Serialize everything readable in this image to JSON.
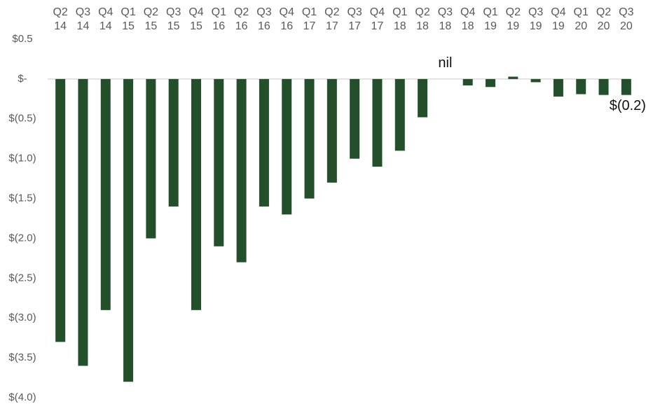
{
  "chart_data": {
    "type": "bar",
    "categories": [
      "Q2 14",
      "Q3 14",
      "Q4 14",
      "Q1 15",
      "Q2 15",
      "Q3 15",
      "Q4 15",
      "Q1 16",
      "Q2 16",
      "Q3 16",
      "Q4 16",
      "Q1 17",
      "Q2 17",
      "Q3 17",
      "Q4 17",
      "Q1 18",
      "Q2 18",
      "Q3 18",
      "Q4 18",
      "Q1 19",
      "Q2 19",
      "Q3 19",
      "Q4 19",
      "Q1 20",
      "Q2 20",
      "Q3 20"
    ],
    "values": [
      -3.3,
      -3.6,
      -2.9,
      -3.8,
      -2.0,
      -1.6,
      -2.9,
      -2.1,
      -2.3,
      -1.6,
      -1.7,
      -1.5,
      -1.3,
      -1.0,
      -1.1,
      -0.9,
      -0.48,
      0,
      -0.08,
      -0.1,
      0.03,
      -0.04,
      -0.22,
      -0.19,
      -0.2,
      -0.2
    ],
    "value_labels": [
      null,
      null,
      null,
      null,
      null,
      null,
      null,
      null,
      null,
      null,
      null,
      null,
      null,
      null,
      null,
      null,
      null,
      "nil",
      null,
      null,
      null,
      null,
      null,
      null,
      null,
      "$(0.2)"
    ],
    "color": "#23502a",
    "ylim": [
      -4.0,
      0.5
    ],
    "yticks": [
      {
        "value": 0.5,
        "label": "$0.5"
      },
      {
        "value": 0,
        "label": "$-"
      },
      {
        "value": -0.5,
        "label": "$(0.5)"
      },
      {
        "value": -1.0,
        "label": "$(1.0)"
      },
      {
        "value": -1.5,
        "label": "$(1.5)"
      },
      {
        "value": -2.0,
        "label": "$(2.0)"
      },
      {
        "value": -2.5,
        "label": "$(2.5)"
      },
      {
        "value": -3.0,
        "label": "$(3.0)"
      },
      {
        "value": -3.5,
        "label": "$(3.5)"
      },
      {
        "value": -4.0,
        "label": "$(4.0)"
      }
    ],
    "grid": false
  }
}
